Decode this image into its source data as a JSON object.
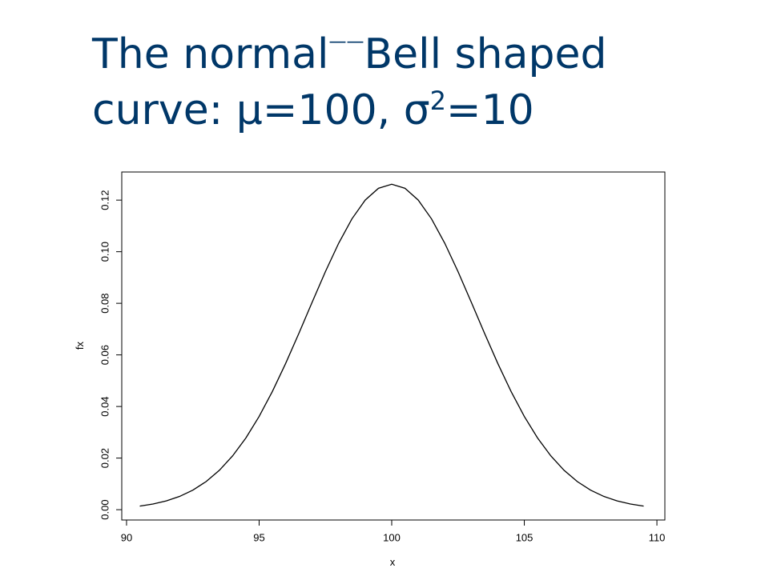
{
  "chart_data": {
    "type": "line",
    "title": {
      "part1": "The normal",
      "dash": "——",
      "part2": "Bell shaped",
      "part3": "curve: μ=100, σ",
      "sup": "2",
      "part4": "=10"
    },
    "x_label": "x",
    "y_label": "fx",
    "x": [
      90.5,
      91,
      91.5,
      92,
      92.5,
      93,
      93.5,
      94,
      94.5,
      95,
      95.5,
      96,
      96.5,
      97,
      97.5,
      98,
      98.5,
      99,
      99.5,
      100,
      100.5,
      101,
      101.5,
      102,
      102.5,
      103,
      103.5,
      104,
      104.5,
      105,
      105.5,
      106,
      106.5,
      107,
      107.5,
      108,
      108.5,
      109,
      109.5
    ],
    "series": [
      {
        "name": "fx",
        "color": "#000000",
        "values": [
          0.00139,
          0.0022,
          0.0034,
          0.00514,
          0.00758,
          0.01089,
          0.01526,
          0.02085,
          0.0278,
          0.03615,
          0.04584,
          0.05669,
          0.06838,
          0.08044,
          0.0923,
          0.10329,
          0.11274,
          0.12001,
          0.12459,
          0.12616,
          0.12459,
          0.12001,
          0.11274,
          0.10329,
          0.0923,
          0.08044,
          0.06838,
          0.05669,
          0.04584,
          0.03615,
          0.0278,
          0.02085,
          0.01526,
          0.01089,
          0.00758,
          0.00514,
          0.0034,
          0.0022,
          0.00139
        ]
      }
    ],
    "xlim": [
      89.82,
      110.3
    ],
    "ylim": [
      -0.004,
      0.1309
    ],
    "xticks": [
      90,
      95,
      100,
      105,
      110
    ],
    "yticks": [
      {
        "value": 0,
        "label": "0.00"
      },
      {
        "value": 0.02,
        "label": "0.02"
      },
      {
        "value": 0.04,
        "label": "0.04"
      },
      {
        "value": 0.06,
        "label": "0.06"
      },
      {
        "value": 0.08,
        "label": "0.08"
      },
      {
        "value": 0.1,
        "label": "0.10"
      },
      {
        "value": 0.12,
        "label": "0.12"
      }
    ],
    "grid": false
  }
}
